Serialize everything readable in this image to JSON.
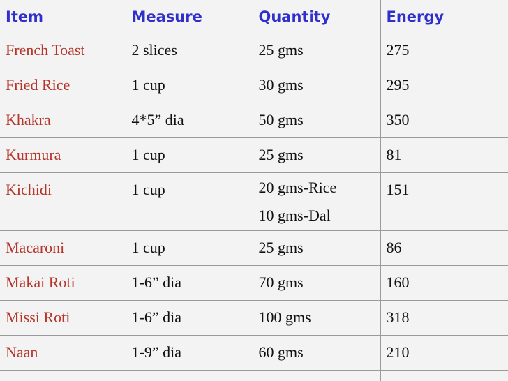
{
  "headers": [
    "Item",
    "Measure",
    "Quantity",
    "Energy"
  ],
  "rows": [
    {
      "item": "French Toast",
      "measure": "2 slices",
      "quantity": [
        "25 gms"
      ],
      "energy": "275"
    },
    {
      "item": "Fried Rice",
      "measure": "1 cup",
      "quantity": [
        "30 gms"
      ],
      "energy": "295"
    },
    {
      "item": "Khakra",
      "measure": "4*5” dia",
      "quantity": [
        "50 gms"
      ],
      "energy": "350"
    },
    {
      "item": "Kurmura",
      "measure": "1 cup",
      "quantity": [
        "25 gms"
      ],
      "energy": "81"
    },
    {
      "item": "Kichidi",
      "measure": "1 cup",
      "quantity": [
        "20 gms-Rice",
        "10 gms-Dal"
      ],
      "energy": "151"
    },
    {
      "item": "Macaroni",
      "measure": "1 cup",
      "quantity": [
        "25 gms"
      ],
      "energy": "86"
    },
    {
      "item": "Makai Roti",
      "measure": "1-6” dia",
      "quantity": [
        "70 gms"
      ],
      "energy": "160"
    },
    {
      "item": "Missi Roti",
      "measure": "1-6” dia",
      "quantity": [
        "100 gms"
      ],
      "energy": "318"
    },
    {
      "item": "Naan",
      "measure": "1-9” dia",
      "quantity": [
        "60 gms"
      ],
      "energy": "210"
    }
  ],
  "colors": {
    "header_text": "#2F2FCC",
    "item_text": "#B5352A",
    "body_text": "#111111",
    "background": "#F3F3F3",
    "grid": "#9A9A9A"
  }
}
